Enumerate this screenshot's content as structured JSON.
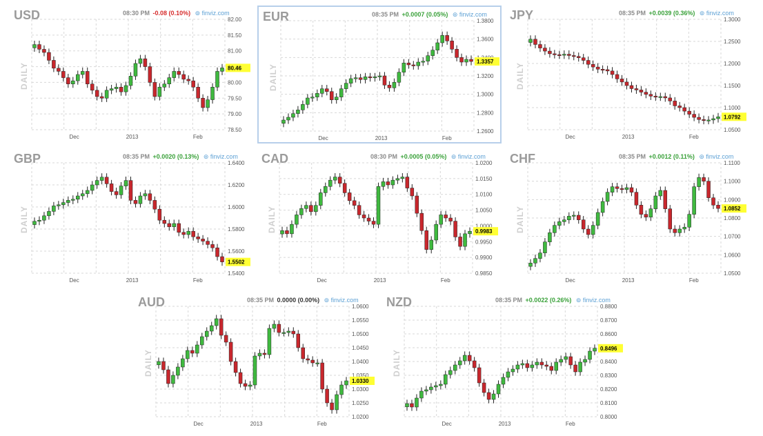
{
  "colors": {
    "up": "#3fb93f",
    "down": "#c8272d",
    "grid": "#d7d7d7",
    "highlight": "#ffff33",
    "positive": "#3aa13a",
    "negative": "#d62c2c",
    "neutral": "#333333"
  },
  "panels": [
    {
      "name": "USD",
      "time": "08:30 PM",
      "change": "-0.08 (0.10%)",
      "change_tone": "negative",
      "source": "finviz.com",
      "daily": "DAILY",
      "selected": false
    },
    {
      "name": "EUR",
      "time": "08:35 PM",
      "change": "+0.0007 (0.05%)",
      "change_tone": "positive",
      "source": "finviz.com",
      "daily": "DAILY",
      "selected": true
    },
    {
      "name": "JPY",
      "time": "08:35 PM",
      "change": "+0.0039 (0.36%)",
      "change_tone": "positive",
      "source": "finviz.com",
      "daily": "DAILY",
      "selected": false
    },
    {
      "name": "GBP",
      "time": "08:35 PM",
      "change": "+0.0020 (0.13%)",
      "change_tone": "positive",
      "source": "finviz.com",
      "daily": "DAILY",
      "selected": false
    },
    {
      "name": "CAD",
      "time": "08:30 PM",
      "change": "+0.0005 (0.05%)",
      "change_tone": "positive",
      "source": "finviz.com",
      "daily": "DAILY",
      "selected": false
    },
    {
      "name": "CHF",
      "time": "08:35 PM",
      "change": "+0.0012 (0.11%)",
      "change_tone": "positive",
      "source": "finviz.com",
      "daily": "DAILY",
      "selected": false
    },
    {
      "name": "AUD",
      "time": "08:35 PM",
      "change": "0.0000 (0.00%)",
      "change_tone": "neutral",
      "source": "finviz.com",
      "daily": "DAILY",
      "selected": false
    },
    {
      "name": "NZD",
      "time": "08:35 PM",
      "change": "+0.0022 (0.26%)",
      "change_tone": "positive",
      "source": "finviz.com",
      "daily": "DAILY",
      "selected": false
    }
  ],
  "chart_data": [
    {
      "type": "candlestick",
      "title": "USD",
      "x_ticks": [
        "Dec",
        "2013",
        "Feb"
      ],
      "y_ticks": [
        "82.00",
        "81.50",
        "81.00",
        "80.50",
        "80.00",
        "79.50",
        "79.00",
        "78.50"
      ],
      "ylim": [
        78.5,
        82.0
      ],
      "last_label": "80.46",
      "last": 80.46,
      "close": [
        81.2,
        81.05,
        80.95,
        80.7,
        80.45,
        80.35,
        80.15,
        79.95,
        80.05,
        80.25,
        80.35,
        79.95,
        79.75,
        79.55,
        79.5,
        79.75,
        79.8,
        79.85,
        79.7,
        79.9,
        80.2,
        80.6,
        80.75,
        80.5,
        80.0,
        79.55,
        79.85,
        79.95,
        80.15,
        80.35,
        80.25,
        80.1,
        80.05,
        79.85,
        79.5,
        79.2,
        79.45,
        79.85,
        80.35,
        80.46
      ]
    },
    {
      "type": "candlestick",
      "title": "EUR",
      "x_ticks": [
        "Dec",
        "2013",
        "Feb"
      ],
      "y_ticks": [
        "1.3800",
        "1.3600",
        "1.3400",
        "1.3200",
        "1.3000",
        "1.2800",
        "1.2600"
      ],
      "ylim": [
        1.26,
        1.38
      ],
      "last_label": "1.3357",
      "last": 1.3357,
      "close": [
        1.272,
        1.275,
        1.279,
        1.283,
        1.289,
        1.296,
        1.297,
        1.301,
        1.306,
        1.303,
        1.294,
        1.297,
        1.306,
        1.312,
        1.317,
        1.318,
        1.316,
        1.319,
        1.318,
        1.319,
        1.32,
        1.31,
        1.307,
        1.313,
        1.324,
        1.334,
        1.332,
        1.331,
        1.335,
        1.336,
        1.342,
        1.348,
        1.356,
        1.364,
        1.358,
        1.349,
        1.34,
        1.335,
        1.338,
        1.3357
      ]
    },
    {
      "type": "candlestick",
      "title": "JPY",
      "x_ticks": [
        "Dec",
        "2013",
        "Feb"
      ],
      "y_ticks": [
        "1.3000",
        "1.2500",
        "1.2000",
        "1.1500",
        "1.1000",
        "1.0500"
      ],
      "ylim": [
        1.05,
        1.3
      ],
      "last_label": "1.0792",
      "last": 1.0792,
      "close": [
        1.255,
        1.243,
        1.235,
        1.228,
        1.222,
        1.22,
        1.219,
        1.221,
        1.218,
        1.216,
        1.213,
        1.207,
        1.198,
        1.192,
        1.187,
        1.186,
        1.183,
        1.175,
        1.165,
        1.158,
        1.15,
        1.143,
        1.14,
        1.135,
        1.13,
        1.126,
        1.124,
        1.125,
        1.122,
        1.115,
        1.104,
        1.1,
        1.092,
        1.085,
        1.078,
        1.073,
        1.071,
        1.072,
        1.075,
        1.0792
      ]
    },
    {
      "type": "candlestick",
      "title": "GBP",
      "x_ticks": [
        "Dec",
        "2013",
        "Feb"
      ],
      "y_ticks": [
        "1.6400",
        "1.6200",
        "1.6000",
        "1.5800",
        "1.5600",
        "1.5400"
      ],
      "ylim": [
        1.54,
        1.64
      ],
      "last_label": "1.5502",
      "last": 1.5502,
      "close": [
        1.587,
        1.588,
        1.592,
        1.596,
        1.601,
        1.602,
        1.604,
        1.606,
        1.607,
        1.61,
        1.612,
        1.615,
        1.62,
        1.624,
        1.627,
        1.621,
        1.614,
        1.611,
        1.619,
        1.624,
        1.606,
        1.603,
        1.61,
        1.612,
        1.606,
        1.598,
        1.588,
        1.585,
        1.582,
        1.585,
        1.577,
        1.575,
        1.578,
        1.573,
        1.571,
        1.569,
        1.566,
        1.563,
        1.555,
        1.5502
      ]
    },
    {
      "type": "candlestick",
      "title": "CAD",
      "x_ticks": [
        "Dec",
        "2013",
        "Feb"
      ],
      "y_ticks": [
        "1.0200",
        "1.0150",
        "1.0100",
        "1.0050",
        "1.0000",
        "0.9950",
        "0.9900",
        "0.9850"
      ],
      "ylim": [
        0.985,
        1.02
      ],
      "last_label": "0.9983",
      "last": 0.9983,
      "close": [
        0.9985,
        0.9975,
        1.0005,
        1.0035,
        1.0055,
        1.0065,
        1.0045,
        1.0065,
        1.0105,
        1.0125,
        1.0145,
        1.0155,
        1.0135,
        1.0105,
        1.008,
        1.0065,
        1.0035,
        1.0025,
        1.0015,
        1.0005,
        1.0125,
        1.014,
        1.013,
        1.0145,
        1.015,
        1.0155,
        1.012,
        1.0095,
        1.004,
        0.9985,
        0.9925,
        0.9955,
        1.0005,
        1.0035,
        1.0025,
        1.0015,
        0.9965,
        0.9935,
        0.9975,
        0.9983
      ]
    },
    {
      "type": "candlestick",
      "title": "CHF",
      "x_ticks": [
        "Dec",
        "2013",
        "Feb"
      ],
      "y_ticks": [
        "1.1100",
        "1.1000",
        "1.0900",
        "1.0800",
        "1.0700",
        "1.0600",
        "1.0500"
      ],
      "ylim": [
        1.05,
        1.11
      ],
      "last_label": "1.0852",
      "last": 1.0852,
      "close": [
        1.0555,
        1.058,
        1.061,
        1.067,
        1.072,
        1.076,
        1.078,
        1.079,
        1.081,
        1.0815,
        1.079,
        1.074,
        1.071,
        1.076,
        1.083,
        1.089,
        1.094,
        1.097,
        1.096,
        1.0955,
        1.0965,
        1.094,
        1.087,
        1.082,
        1.0805,
        1.085,
        1.092,
        1.095,
        1.085,
        1.074,
        1.072,
        1.074,
        1.075,
        1.082,
        1.097,
        1.102,
        1.1,
        1.091,
        1.087,
        1.0852
      ]
    },
    {
      "type": "candlestick",
      "title": "AUD",
      "x_ticks": [
        "Dec",
        "2013",
        "Feb"
      ],
      "y_ticks": [
        "1.0600",
        "1.0550",
        "1.0500",
        "1.0450",
        "1.0400",
        "1.0350",
        "1.0300",
        "1.0250",
        "1.0200"
      ],
      "ylim": [
        1.02,
        1.06
      ],
      "last_label": "1.0330",
      "last": 1.033,
      "close": [
        1.04,
        1.037,
        1.032,
        1.035,
        1.038,
        1.041,
        1.044,
        1.043,
        1.046,
        1.049,
        1.051,
        1.053,
        1.0555,
        1.0495,
        1.047,
        1.04,
        1.036,
        1.032,
        1.031,
        1.0315,
        1.042,
        1.043,
        1.0425,
        1.052,
        1.0535,
        1.0505,
        1.0505,
        1.051,
        1.05,
        1.045,
        1.041,
        1.0405,
        1.0395,
        1.0395,
        1.03,
        1.025,
        1.0225,
        1.028,
        1.0315,
        1.033
      ]
    },
    {
      "type": "candlestick",
      "title": "NZD",
      "x_ticks": [
        "Dec",
        "2013",
        "Feb"
      ],
      "y_ticks": [
        "0.8800",
        "0.8700",
        "0.8600",
        "0.8500",
        "0.8400",
        "0.8300",
        "0.8200",
        "0.8100",
        "0.8000"
      ],
      "ylim": [
        0.8,
        0.88
      ],
      "last_label": "0.8496",
      "last": 0.8496,
      "close": [
        0.8095,
        0.807,
        0.8135,
        0.8185,
        0.8195,
        0.8215,
        0.8225,
        0.8235,
        0.8305,
        0.8335,
        0.8375,
        0.8405,
        0.8445,
        0.8405,
        0.8355,
        0.8245,
        0.8175,
        0.8125,
        0.8165,
        0.8235,
        0.8285,
        0.8325,
        0.8345,
        0.8375,
        0.8385,
        0.8355,
        0.8375,
        0.8395,
        0.8375,
        0.8365,
        0.8335,
        0.8395,
        0.8415,
        0.8435,
        0.8375,
        0.8325,
        0.8395,
        0.8415,
        0.8475,
        0.8496
      ]
    }
  ]
}
